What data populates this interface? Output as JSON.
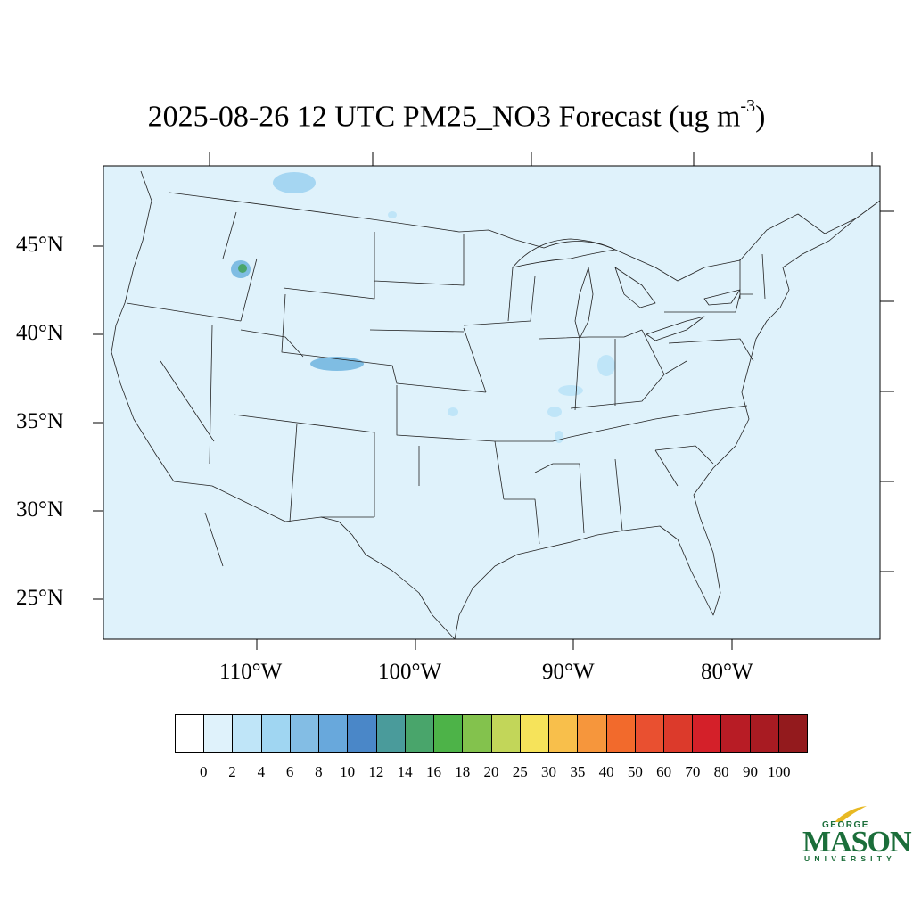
{
  "title": {
    "text": "2025-08-26 12 UTC PM25_NO3 Forecast (ug m",
    "superscript": "-3",
    "close": ")"
  },
  "map": {
    "background_color": "#dff2fb",
    "region": "Contiguous United States",
    "lat_labels": [
      "45°N",
      "40°N",
      "35°N",
      "30°N",
      "25°N"
    ],
    "lon_labels": [
      "110°W",
      "100°W",
      "90°W",
      "80°W"
    ],
    "hotspots": [
      {
        "name": "central Idaho",
        "level": "8-16",
        "color": "#7fbde3"
      },
      {
        "name": "northern Montana",
        "level": "4-6",
        "color": "#a5d6f2"
      },
      {
        "name": "northern Colorado",
        "level": "6-10",
        "color": "#7fbde3"
      },
      {
        "name": "southern Indiana",
        "level": "2-6",
        "color": "#a5d6f2"
      },
      {
        "name": "Missouri / Arkansas",
        "level": "2-4",
        "color": "#bfe5f8"
      }
    ]
  },
  "colorbar": {
    "colors": [
      "#ffffff",
      "#dff2fb",
      "#bfe5f8",
      "#a0d6f2",
      "#83bde4",
      "#68a8dc",
      "#4a87c8",
      "#4a9b9b",
      "#49a56b",
      "#4db348",
      "#83c24d",
      "#c2d659",
      "#f6e35a",
      "#f8bf4b",
      "#f6963c",
      "#f26a2c",
      "#e95030",
      "#dc3a2b",
      "#d42029",
      "#b81c25",
      "#a81b22",
      "#931a1d"
    ],
    "labels": [
      "0",
      "2",
      "4",
      "6",
      "8",
      "10",
      "12",
      "14",
      "16",
      "18",
      "20",
      "25",
      "30",
      "35",
      "40",
      "50",
      "60",
      "70",
      "80",
      "90",
      "100"
    ]
  },
  "logo": {
    "top": "GEORGE",
    "main": "MASON",
    "bottom": "UNIVERSITY",
    "color": "#1b6e3a",
    "accent": "#e8b923"
  }
}
